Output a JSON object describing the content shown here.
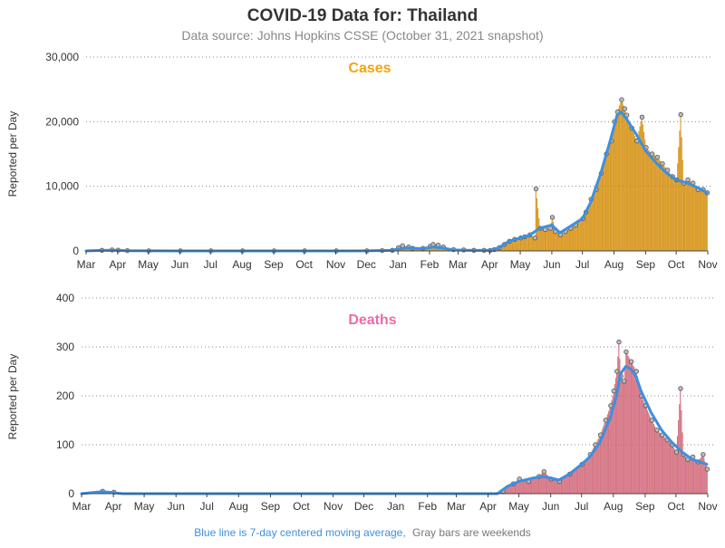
{
  "figure": {
    "title": "COVID-19 Data for: Thailand",
    "subtitle": "Data source: Johns Hopkins CSSE (October 31, 2021 snapshot)",
    "footnote_blue": "Blue line is 7-day centered moving average,",
    "footnote_gray": "Gray bars are weekends"
  },
  "colors": {
    "cases_bar": "#F4A30F",
    "deaths_bar": "#EE6AA7",
    "moving_average": "#3D8FE0",
    "point_fill": "#BBBBBB",
    "point_stroke": "#555555",
    "grid": "#888888",
    "title": "#333333",
    "subtitle": "#888888",
    "footnote_blue": "#3D8FE0",
    "footnote_gray": "#777777"
  },
  "chart_data": [
    {
      "type": "bar",
      "title": "Cases",
      "ylabel": "Reported per Day",
      "xlabel": "",
      "ylim": [
        0,
        30000
      ],
      "yticks": [
        0,
        10000,
        20000,
        30000
      ],
      "ytick_labels": [
        "0",
        "10,000",
        "20,000",
        "30,000"
      ],
      "xlim": [
        0,
        610
      ],
      "xticks": [
        0,
        31,
        61,
        92,
        122,
        153,
        184,
        214,
        245,
        275,
        306,
        337,
        365,
        396,
        426,
        457,
        487,
        518,
        549,
        579,
        610
      ],
      "xtick_labels": [
        "Mar",
        "Apr",
        "May",
        "Jun",
        "Jul",
        "Aug",
        "Sep",
        "Oct",
        "Nov",
        "Dec",
        "Jan",
        "Feb",
        "Mar",
        "Apr",
        "May",
        "Jun",
        "Jul",
        "Aug",
        "Sep",
        "Oct",
        "Nov"
      ],
      "grid": "horizontal-dotted",
      "x_unit": "days since Mar 1, 2020",
      "series": [
        {
          "name": "Reported per Day",
          "x": [
            0,
            15,
            25,
            31,
            40,
            61,
            92,
            122,
            153,
            184,
            214,
            245,
            275,
            290,
            300,
            306,
            310,
            316,
            320,
            330,
            337,
            340,
            345,
            350,
            360,
            370,
            380,
            390,
            396,
            400,
            405,
            410,
            415,
            420,
            426,
            430,
            435,
            440,
            441,
            445,
            450,
            455,
            457,
            460,
            465,
            470,
            475,
            480,
            487,
            490,
            495,
            500,
            505,
            510,
            515,
            518,
            521,
            525,
            528,
            530,
            535,
            540,
            545,
            549,
            555,
            560,
            565,
            570,
            575,
            579,
            583,
            586,
            590,
            595,
            600,
            605,
            609
          ],
          "y": [
            0,
            100,
            150,
            120,
            50,
            10,
            5,
            5,
            5,
            10,
            5,
            5,
            10,
            50,
            100,
            500,
            800,
            600,
            400,
            400,
            700,
            1000,
            900,
            600,
            200,
            150,
            100,
            100,
            80,
            200,
            500,
            1000,
            1500,
            1800,
            2000,
            2200,
            2500,
            2000,
            9600,
            3500,
            3300,
            3500,
            5200,
            3000,
            2500,
            3000,
            3500,
            4000,
            5000,
            6000,
            8000,
            9500,
            12000,
            15000,
            17000,
            20000,
            21500,
            23400,
            22000,
            21000,
            19000,
            17000,
            20700,
            16000,
            15000,
            14500,
            13500,
            12500,
            11500,
            11000,
            21100,
            10500,
            11000,
            10500,
            9500,
            9500,
            9000
          ]
        },
        {
          "name": "7-day centered moving average",
          "x": [
            0,
            15,
            25,
            31,
            40,
            61,
            92,
            122,
            153,
            184,
            214,
            245,
            275,
            300,
            306,
            316,
            330,
            340,
            350,
            360,
            380,
            396,
            405,
            415,
            426,
            435,
            445,
            457,
            465,
            475,
            487,
            495,
            505,
            515,
            521,
            525,
            530,
            540,
            549,
            560,
            570,
            579,
            590,
            600,
            609
          ],
          "y": [
            0,
            80,
            100,
            90,
            30,
            10,
            5,
            5,
            5,
            5,
            5,
            5,
            10,
            80,
            300,
            450,
            350,
            600,
            450,
            150,
            90,
            80,
            500,
            1500,
            2000,
            2400,
            3500,
            4000,
            2800,
            3800,
            5000,
            7500,
            12000,
            17500,
            21000,
            21500,
            20500,
            18000,
            15500,
            13500,
            12000,
            11000,
            10500,
            9800,
            9000
          ]
        }
      ]
    },
    {
      "type": "bar",
      "title": "Deaths",
      "ylabel": "Reported per Day",
      "xlabel": "",
      "ylim": [
        0,
        400
      ],
      "yticks": [
        0,
        100,
        200,
        300,
        400
      ],
      "ytick_labels": [
        "0",
        "100",
        "200",
        "300",
        "400"
      ],
      "xlim": [
        0,
        610
      ],
      "xticks": [
        0,
        31,
        61,
        92,
        122,
        153,
        184,
        214,
        245,
        275,
        306,
        337,
        365,
        396,
        426,
        457,
        487,
        518,
        549,
        579,
        610
      ],
      "xtick_labels": [
        "Mar",
        "Apr",
        "May",
        "Jun",
        "Jul",
        "Aug",
        "Sep",
        "Oct",
        "Nov",
        "Dec",
        "Jan",
        "Feb",
        "Mar",
        "Apr",
        "May",
        "Jun",
        "Jul",
        "Aug",
        "Sep",
        "Oct",
        "Nov"
      ],
      "grid": "horizontal-dotted",
      "x_unit": "days since Mar 1, 2020",
      "series": [
        {
          "name": "Reported per Day",
          "x": [
            0,
            20,
            31,
            40,
            61,
            92,
            122,
            153,
            184,
            214,
            245,
            275,
            306,
            337,
            365,
            396,
            410,
            420,
            426,
            435,
            445,
            450,
            457,
            465,
            475,
            487,
            495,
            500,
            505,
            510,
            515,
            518,
            521,
            523,
            525,
            528,
            530,
            535,
            540,
            545,
            549,
            555,
            560,
            565,
            570,
            575,
            579,
            583,
            586,
            590,
            595,
            600,
            605,
            609
          ],
          "y": [
            0,
            5,
            3,
            0,
            0,
            0,
            0,
            0,
            0,
            0,
            0,
            0,
            0,
            0,
            0,
            0,
            5,
            20,
            30,
            25,
            35,
            45,
            30,
            25,
            40,
            60,
            80,
            100,
            120,
            150,
            180,
            210,
            250,
            310,
            240,
            230,
            290,
            270,
            250,
            200,
            180,
            150,
            130,
            120,
            110,
            100,
            85,
            215,
            80,
            70,
            75,
            65,
            80,
            50
          ]
        },
        {
          "name": "7-day centered moving average",
          "x": [
            0,
            20,
            31,
            40,
            61,
            92,
            122,
            153,
            184,
            214,
            245,
            275,
            306,
            337,
            365,
            396,
            405,
            415,
            426,
            440,
            450,
            465,
            475,
            487,
            495,
            505,
            515,
            521,
            525,
            530,
            535,
            540,
            545,
            555,
            565,
            575,
            585,
            595,
            609
          ],
          "y": [
            0,
            4,
            2,
            0,
            0,
            0,
            0,
            0,
            0,
            0,
            0,
            0,
            0,
            0,
            0,
            0,
            0,
            15,
            25,
            32,
            35,
            28,
            40,
            60,
            75,
            105,
            155,
            200,
            245,
            260,
            255,
            240,
            210,
            165,
            130,
            105,
            85,
            70,
            60
          ]
        }
      ]
    }
  ]
}
